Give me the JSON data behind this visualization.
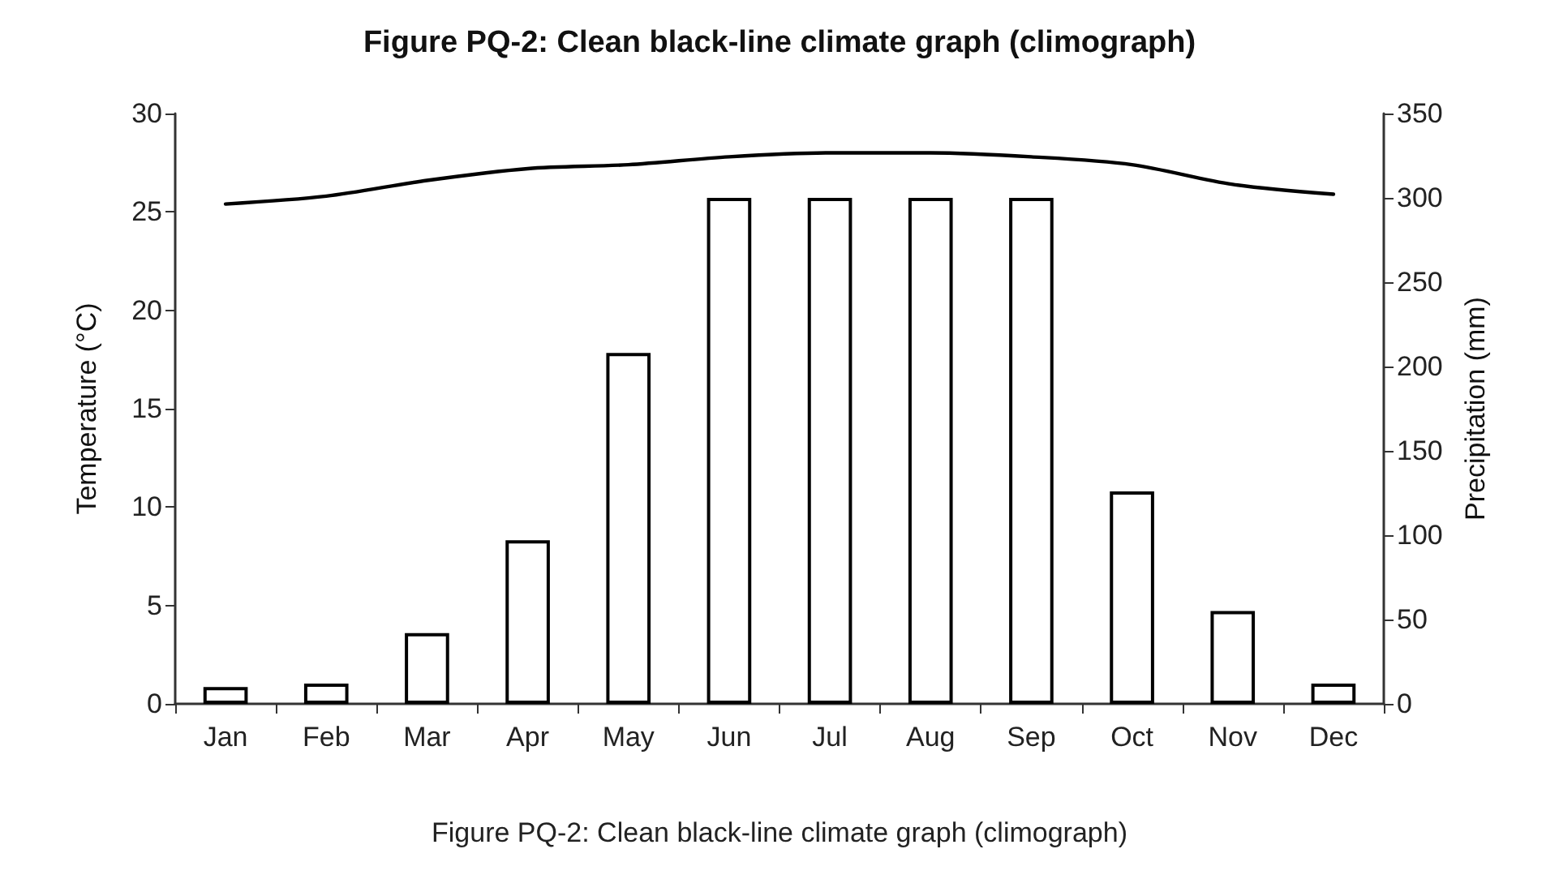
{
  "chart_data": {
    "type": "bar",
    "title": "Figure PQ-2: Clean black-line climate graph (climograph)",
    "ylabel": "Temperature (°C)",
    "y2label": "Precipitation (mm)",
    "annotations": [
      "Figure PQ-2: Clean black-line climate graph (climograph)"
    ],
    "categories": [
      "Jan",
      "Feb",
      "Mar",
      "Apr",
      "May",
      "Jun",
      "Jul",
      "Aug",
      "Sep",
      "Oct",
      "Nov",
      "Dec"
    ],
    "series": [
      {
        "axis": "y2",
        "color": "#ffffff",
        "values": [
          10,
          12,
          42,
          97,
          208,
          300,
          300,
          300,
          300,
          126,
          55,
          12
        ]
      },
      {
        "type": "line",
        "color": "#000000",
        "values": [
          25.4,
          25.8,
          26.6,
          27.2,
          27.4,
          27.8,
          28.0,
          28.0,
          27.8,
          27.4,
          26.4,
          25.9
        ]
      }
    ],
    "ylim": [
      0,
      30
    ],
    "yticks": [
      0,
      5,
      10,
      15,
      20,
      25,
      30
    ],
    "y2lim": [
      0,
      350
    ],
    "y2ticks": [
      0,
      50,
      100,
      150,
      200,
      250,
      300,
      350
    ],
    "grid": false,
    "marker": "none",
    "line_style": "solid"
  }
}
